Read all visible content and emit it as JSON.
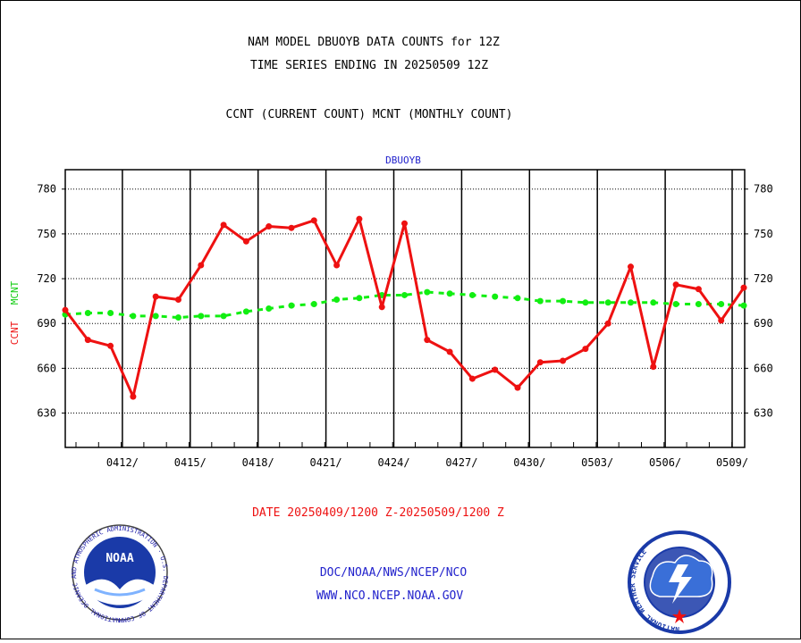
{
  "header": {
    "line1": "NAM MODEL DBUOYB DATA COUNTS for 12Z",
    "line2": "TIME SERIES ENDING IN 20250509 12Z",
    "line3": "CCNT (CURRENT COUNT) MCNT (MONTHLY COUNT)"
  },
  "footer": {
    "date_range": "DATE 20250409/1200 Z-20250509/1200 Z",
    "org_path": "DOC/NOAA/NWS/NCEP/NCO",
    "website": "WWW.NCO.NCEP.NOAA.GOV"
  },
  "logos": {
    "noaa_text": "NOAA",
    "noaa_ring": "NATIONAL OCEANIC AND ATMOSPHERIC ADMINISTRATION · U.S. DEPARTMENT OF COMMERCE ·",
    "nws_ring": "NATIONAL WEATHER SERVICE"
  },
  "colors": {
    "ccnt": "#ee1111",
    "mcnt": "#11ee11",
    "blue_text": "#2222cc",
    "red_text": "#ee1111"
  },
  "chart_data": {
    "type": "line",
    "title": "DBUOYB",
    "ylabel_ccnt": "CCNT",
    "ylabel_mcnt": "MCNT",
    "ylim": [
      607,
      793
    ],
    "yticks": [
      630,
      660,
      690,
      720,
      750,
      780
    ],
    "x_dates": [
      "0409",
      "0410",
      "0411",
      "0412",
      "0413",
      "0414",
      "0415",
      "0416",
      "0417",
      "0418",
      "0419",
      "0420",
      "0421",
      "0422",
      "0423",
      "0424",
      "0425",
      "0426",
      "0427",
      "0428",
      "0429",
      "0430",
      "0501",
      "0502",
      "0503",
      "0504",
      "0505",
      "0506",
      "0507",
      "0508",
      "0509"
    ],
    "xtick_labels": [
      "0412/",
      "0415/",
      "0418/",
      "0421/",
      "0424/",
      "0427/",
      "0430/",
      "0503/",
      "0506/",
      "0509/"
    ],
    "grid": true,
    "series": [
      {
        "name": "CCNT",
        "values": [
          699,
          679,
          675,
          641,
          708,
          706,
          729,
          756,
          745,
          755,
          754,
          759,
          729,
          760,
          701,
          757,
          679,
          671,
          653,
          659,
          647,
          664,
          665,
          673,
          690,
          728,
          661,
          716,
          713,
          692,
          714
        ]
      },
      {
        "name": "MCNT",
        "values": [
          696,
          697,
          697,
          695,
          695,
          694,
          695,
          695,
          698,
          700,
          702,
          703,
          706,
          707,
          709,
          709,
          711,
          710,
          709,
          708,
          707,
          705,
          705,
          704,
          704,
          704,
          704,
          703,
          703,
          703,
          702
        ]
      }
    ]
  }
}
